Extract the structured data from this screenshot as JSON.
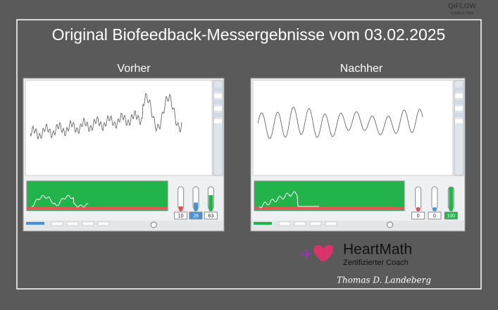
{
  "logo": {
    "name": "QiFLOW",
    "tagline": "CONSULTING"
  },
  "title": "Original Biofeedback-Messergebnisse vom 03.02.2025",
  "panels": [
    {
      "label": "Vorher",
      "coherence": {
        "low": 10,
        "medium": 28,
        "high": 63
      }
    },
    {
      "label": "Nachher",
      "coherence": {
        "low": 0,
        "medium": 0,
        "high": 100
      }
    }
  ],
  "badge": {
    "brand": "HeartMath",
    "role": "Zertifizierter Coach",
    "signature": "Thomas D. Landeberg"
  }
}
